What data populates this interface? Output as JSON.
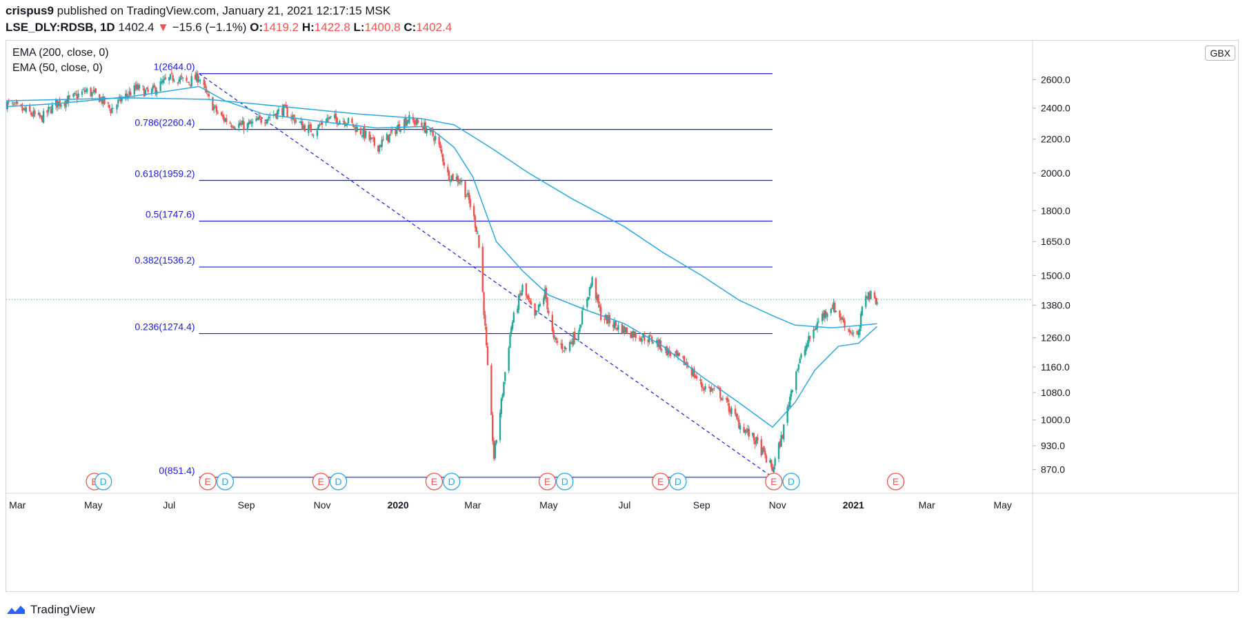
{
  "header": {
    "author": "crispus9",
    "published_text": "published on TradingView.com, January 21, 2021 12:17:15 MSK",
    "symbol": "LSE_DLY:RDSB, 1D",
    "last_price": "1402.4",
    "change_arrow": "▼",
    "change": "−15.6 (−1.1%)",
    "o_label": "O:",
    "o_value": "1419.2",
    "h_label": "H:",
    "h_value": "1422.8",
    "l_label": "L:",
    "l_value": "1400.8",
    "c_label": "C:",
    "c_value": "1402.4"
  },
  "legend": {
    "ema200": "EMA (200, close, 0)",
    "ema50": "EMA (50, close, 0)"
  },
  "currency": "GBX",
  "footer": {
    "brand": "TradingView"
  },
  "colors": {
    "up": "#26a69a",
    "down": "#ef5350",
    "ema": "#29a8e0",
    "fib": "#1a1adb",
    "earnings": "#ef5350",
    "dividend": "#29a8e0",
    "last_price_line": "#ef5350"
  },
  "chart_data": {
    "type": "candlestick",
    "y_scale": "log",
    "ylim": [
      814,
      2900
    ],
    "y_ticks": [
      870,
      930,
      1000,
      1080,
      1160,
      1260,
      1380,
      1500,
      1650,
      1800,
      2000,
      2200,
      2400,
      2600
    ],
    "y_tick_labels": [
      "870.0",
      "930.0",
      "1000.0",
      "1080.0",
      "1160.0",
      "1260.0",
      "1380.0",
      "1500.0",
      "1650.0",
      "1800.0",
      "2000.0",
      "2200.0",
      "2400.0",
      "2600.0"
    ],
    "x_range": [
      "2019-02-20",
      "2021-05-25"
    ],
    "x_ticks": [
      {
        "date": "2019-03-01",
        "label": "Mar",
        "bold": false
      },
      {
        "date": "2019-05-01",
        "label": "May",
        "bold": false
      },
      {
        "date": "2019-07-01",
        "label": "Jul",
        "bold": false
      },
      {
        "date": "2019-09-01",
        "label": "Sep",
        "bold": false
      },
      {
        "date": "2019-11-01",
        "label": "Nov",
        "bold": false
      },
      {
        "date": "2020-01-01",
        "label": "2020",
        "bold": true
      },
      {
        "date": "2020-03-01",
        "label": "Mar",
        "bold": false
      },
      {
        "date": "2020-05-01",
        "label": "May",
        "bold": false
      },
      {
        "date": "2020-07-01",
        "label": "Jul",
        "bold": false
      },
      {
        "date": "2020-09-01",
        "label": "Sep",
        "bold": false
      },
      {
        "date": "2020-11-01",
        "label": "Nov",
        "bold": false
      },
      {
        "date": "2021-01-01",
        "label": "2021",
        "bold": true
      },
      {
        "date": "2021-03-01",
        "label": "Mar",
        "bold": false
      },
      {
        "date": "2021-05-01",
        "label": "May",
        "bold": false
      }
    ],
    "last_price": 1402.4,
    "fib_retracement": {
      "start_date": "2019-07-25",
      "end_date": "2020-10-28",
      "levels": [
        {
          "ratio": "1",
          "price": 2644.0,
          "label": "1(2644.0)"
        },
        {
          "ratio": "0.786",
          "price": 2260.4,
          "label": "0.786(2260.4)"
        },
        {
          "ratio": "0.618",
          "price": 1959.2,
          "label": "0.618(1959.2)"
        },
        {
          "ratio": "0.5",
          "price": 1747.6,
          "label": "0.5(1747.6)"
        },
        {
          "ratio": "0.382",
          "price": 1536.2,
          "label": "0.382(1536.2)"
        },
        {
          "ratio": "0.236",
          "price": 1274.4,
          "label": "0.236(1274.4)"
        },
        {
          "ratio": "0",
          "price": 851.4,
          "label": "0(851.4)"
        }
      ]
    },
    "trend_line": {
      "from": [
        "2019-07-25",
        2644.0
      ],
      "to": [
        "2020-10-28",
        851.4
      ]
    },
    "close_path": [
      [
        "2019-02-20",
        2430
      ],
      [
        "2019-03-10",
        2370
      ],
      [
        "2019-03-20",
        2330
      ],
      [
        "2019-04-01",
        2430
      ],
      [
        "2019-04-15",
        2470
      ],
      [
        "2019-04-25",
        2520
      ],
      [
        "2019-05-05",
        2480
      ],
      [
        "2019-05-15",
        2390
      ],
      [
        "2019-05-25",
        2470
      ],
      [
        "2019-06-05",
        2540
      ],
      [
        "2019-06-15",
        2500
      ],
      [
        "2019-06-25",
        2570
      ],
      [
        "2019-07-05",
        2620
      ],
      [
        "2019-07-15",
        2580
      ],
      [
        "2019-07-25",
        2620
      ],
      [
        "2019-08-01",
        2470
      ],
      [
        "2019-08-10",
        2350
      ],
      [
        "2019-08-20",
        2300
      ],
      [
        "2019-09-01",
        2280
      ],
      [
        "2019-09-15",
        2330
      ],
      [
        "2019-10-01",
        2390
      ],
      [
        "2019-10-15",
        2290
      ],
      [
        "2019-10-25",
        2250
      ],
      [
        "2019-11-05",
        2330
      ],
      [
        "2019-11-20",
        2320
      ],
      [
        "2019-12-05",
        2230
      ],
      [
        "2019-12-15",
        2150
      ],
      [
        "2019-12-25",
        2220
      ],
      [
        "2020-01-08",
        2330
      ],
      [
        "2020-01-20",
        2290
      ],
      [
        "2020-02-01",
        2200
      ],
      [
        "2020-02-10",
        1990
      ],
      [
        "2020-02-20",
        1960
      ],
      [
        "2020-02-27",
        1850
      ],
      [
        "2020-03-05",
        1690
      ],
      [
        "2020-03-09",
        1430
      ],
      [
        "2020-03-13",
        1150
      ],
      [
        "2020-03-16",
        1000
      ],
      [
        "2020-03-18",
        900
      ],
      [
        "2020-03-24",
        1050
      ],
      [
        "2020-04-01",
        1300
      ],
      [
        "2020-04-10",
        1450
      ],
      [
        "2020-04-20",
        1330
      ],
      [
        "2020-04-28",
        1430
      ],
      [
        "2020-05-05",
        1250
      ],
      [
        "2020-05-15",
        1220
      ],
      [
        "2020-05-25",
        1290
      ],
      [
        "2020-06-05",
        1480
      ],
      [
        "2020-06-12",
        1340
      ],
      [
        "2020-06-25",
        1300
      ],
      [
        "2020-07-10",
        1270
      ],
      [
        "2020-07-25",
        1250
      ],
      [
        "2020-08-05",
        1210
      ],
      [
        "2020-08-20",
        1170
      ],
      [
        "2020-09-01",
        1100
      ],
      [
        "2020-09-15",
        1080
      ],
      [
        "2020-10-01",
        990
      ],
      [
        "2020-10-15",
        940
      ],
      [
        "2020-10-28",
        870
      ],
      [
        "2020-11-05",
        960
      ],
      [
        "2020-11-15",
        1140
      ],
      [
        "2020-11-25",
        1240
      ],
      [
        "2020-12-05",
        1330
      ],
      [
        "2020-12-15",
        1380
      ],
      [
        "2020-12-28",
        1290
      ],
      [
        "2021-01-05",
        1260
      ],
      [
        "2021-01-10",
        1430
      ],
      [
        "2021-01-20",
        1402
      ]
    ],
    "ema200_path": [
      [
        "2019-02-20",
        2450
      ],
      [
        "2019-06-01",
        2470
      ],
      [
        "2019-08-01",
        2460
      ],
      [
        "2019-10-01",
        2410
      ],
      [
        "2019-12-01",
        2360
      ],
      [
        "2020-01-20",
        2330
      ],
      [
        "2020-02-15",
        2290
      ],
      [
        "2020-03-15",
        2150
      ],
      [
        "2020-04-15",
        2000
      ],
      [
        "2020-05-20",
        1860
      ],
      [
        "2020-07-01",
        1720
      ],
      [
        "2020-08-01",
        1600
      ],
      [
        "2020-09-01",
        1500
      ],
      [
        "2020-10-01",
        1400
      ],
      [
        "2020-10-28",
        1340
      ],
      [
        "2020-11-15",
        1305
      ],
      [
        "2020-12-15",
        1295
      ],
      [
        "2021-01-20",
        1310
      ]
    ],
    "ema50_path": [
      [
        "2019-02-20",
        2410
      ],
      [
        "2019-04-01",
        2430
      ],
      [
        "2019-06-01",
        2480
      ],
      [
        "2019-07-25",
        2550
      ],
      [
        "2019-08-15",
        2450
      ],
      [
        "2019-09-15",
        2360
      ],
      [
        "2019-11-01",
        2310
      ],
      [
        "2019-12-15",
        2270
      ],
      [
        "2020-01-25",
        2280
      ],
      [
        "2020-02-15",
        2150
      ],
      [
        "2020-03-01",
        1980
      ],
      [
        "2020-03-20",
        1650
      ],
      [
        "2020-04-10",
        1520
      ],
      [
        "2020-05-01",
        1420
      ],
      [
        "2020-06-01",
        1360
      ],
      [
        "2020-07-01",
        1310
      ],
      [
        "2020-08-01",
        1230
      ],
      [
        "2020-09-01",
        1130
      ],
      [
        "2020-10-01",
        1050
      ],
      [
        "2020-10-28",
        980
      ],
      [
        "2020-11-15",
        1050
      ],
      [
        "2020-12-01",
        1150
      ],
      [
        "2020-12-20",
        1230
      ],
      [
        "2021-01-05",
        1240
      ],
      [
        "2021-01-20",
        1300
      ]
    ],
    "events": [
      {
        "type": "E",
        "date": "2019-05-02"
      },
      {
        "type": "D",
        "date": "2019-05-09"
      },
      {
        "type": "E",
        "date": "2019-08-01"
      },
      {
        "type": "D",
        "date": "2019-08-15"
      },
      {
        "type": "E",
        "date": "2019-10-31"
      },
      {
        "type": "D",
        "date": "2019-11-14"
      },
      {
        "type": "E",
        "date": "2020-01-30"
      },
      {
        "type": "D",
        "date": "2020-02-13"
      },
      {
        "type": "E",
        "date": "2020-04-30"
      },
      {
        "type": "D",
        "date": "2020-05-14"
      },
      {
        "type": "E",
        "date": "2020-07-30"
      },
      {
        "type": "D",
        "date": "2020-08-13"
      },
      {
        "type": "E",
        "date": "2020-10-29"
      },
      {
        "type": "D",
        "date": "2020-11-12"
      },
      {
        "type": "E",
        "date": "2021-02-04"
      }
    ]
  }
}
